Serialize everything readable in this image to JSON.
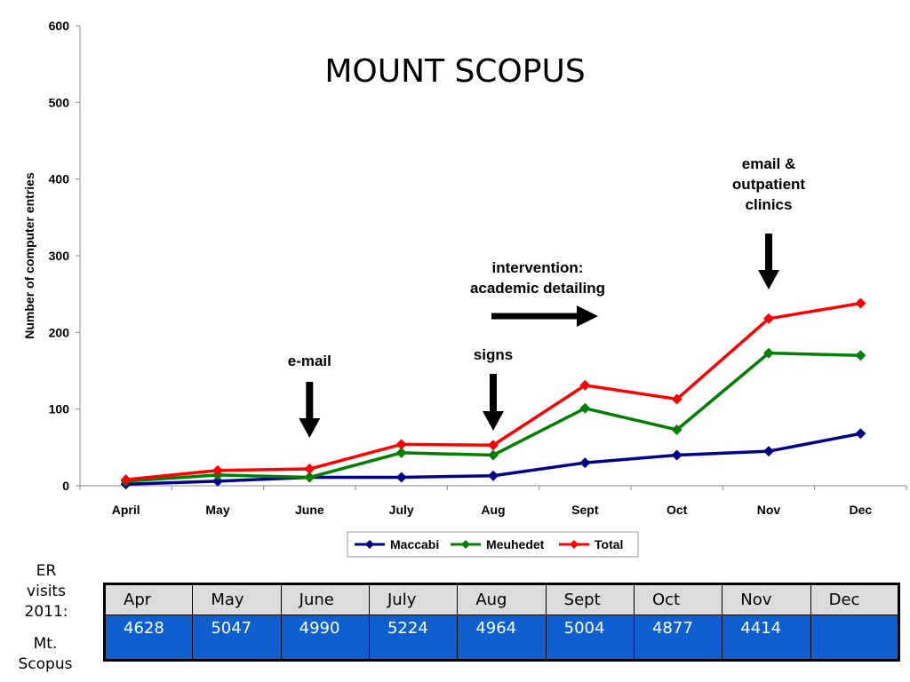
{
  "chart_data": {
    "type": "line",
    "title": "MOUNT SCOPUS",
    "xlabel": "",
    "ylabel": "Number of computer entries",
    "ylim": [
      0,
      600
    ],
    "yticks": [
      0,
      100,
      200,
      300,
      400,
      500,
      600
    ],
    "categories": [
      "April",
      "May",
      "June",
      "July",
      "Aug",
      "Sept",
      "Oct",
      "Nov",
      "Dec"
    ],
    "series": [
      {
        "name": "Maccabi",
        "color": "#00008b",
        "values": [
          2,
          6,
          11,
          11,
          13,
          30,
          40,
          45,
          68
        ]
      },
      {
        "name": "Meuhedet",
        "color": "#008000",
        "values": [
          6,
          14,
          11,
          43,
          40,
          101,
          73,
          173,
          170
        ]
      },
      {
        "name": "Total",
        "color": "#ff0000",
        "values": [
          8,
          20,
          22,
          54,
          53,
          131,
          113,
          218,
          238
        ]
      }
    ],
    "legend": "bottom",
    "grid": false,
    "annotations": [
      {
        "lines": [
          "e-mail"
        ],
        "category": "June",
        "arrow": "down"
      },
      {
        "lines": [
          "signs"
        ],
        "category": "Aug",
        "arrow": "down"
      },
      {
        "lines": [
          "intervention:",
          "academic detailing"
        ],
        "category": "Sept",
        "arrow": "right"
      },
      {
        "lines": [
          "email &",
          "outpatient",
          "clinics"
        ],
        "category": "Nov",
        "arrow": "down"
      }
    ]
  },
  "er_visits": {
    "label_lines": [
      "ER",
      "visits",
      "2011:"
    ],
    "site_lines": [
      "Mt.",
      "Scopus"
    ],
    "months": [
      "Apr",
      "May",
      "June",
      "July",
      "Aug",
      "Sept",
      "Oct",
      "Nov",
      "Dec"
    ],
    "values": [
      "4628",
      "5047",
      "4990",
      "5224",
      "4964",
      "5004",
      "4877",
      "4414",
      ""
    ]
  }
}
